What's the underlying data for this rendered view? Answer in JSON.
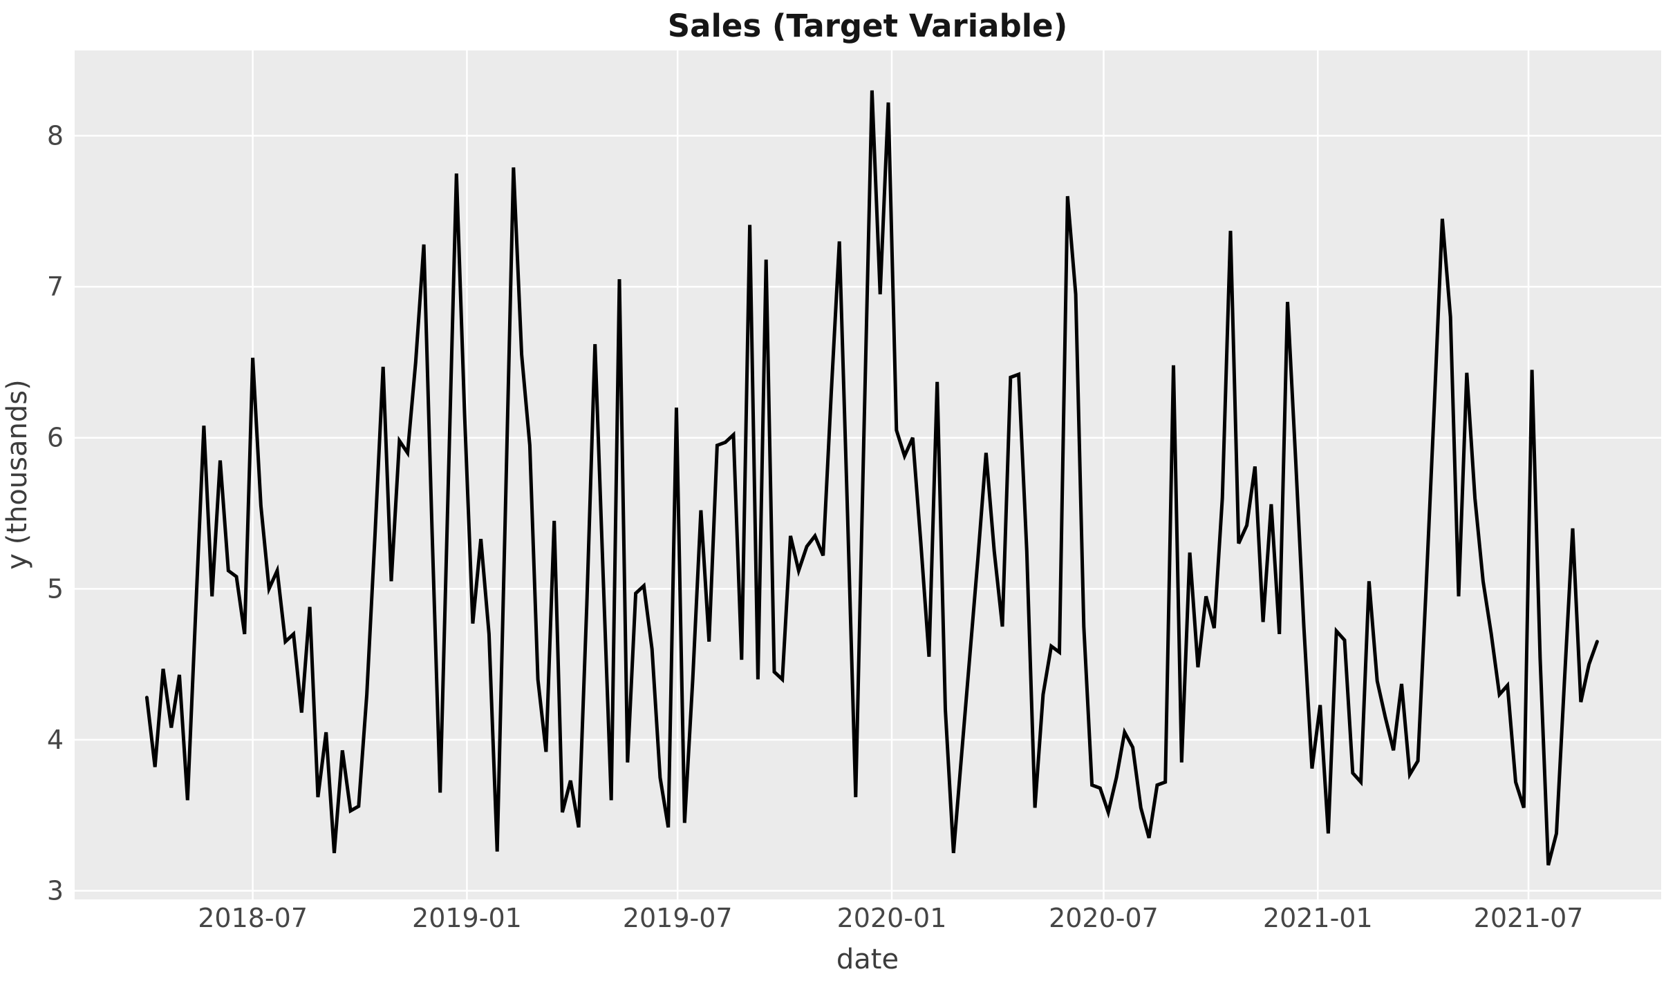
{
  "chart_data": {
    "type": "line",
    "title": "Sales (Target Variable)",
    "xlabel": "date",
    "ylabel": "y (thousands)",
    "legend": null,
    "grid": true,
    "plot_bg_color": "#EBEBEB",
    "grid_color": "#FFFFFF",
    "line_color": "#000000",
    "ylim": [
      2.943,
      8.565
    ],
    "y_ticks": [
      3,
      4,
      5,
      6,
      7,
      8
    ],
    "y_tick_labels": [
      "3",
      "4",
      "5",
      "6",
      "7",
      "8"
    ],
    "x_axis_start": "2018-01-29",
    "x_axis_end": "2021-10-23",
    "x_ticks": [
      {
        "label": "2018-07",
        "date": "2018-07-01"
      },
      {
        "label": "2019-01",
        "date": "2019-01-01"
      },
      {
        "label": "2019-07",
        "date": "2019-07-01"
      },
      {
        "label": "2020-01",
        "date": "2020-01-01"
      },
      {
        "label": "2020-07",
        "date": "2020-07-01"
      },
      {
        "label": "2021-01",
        "date": "2021-01-01"
      },
      {
        "label": "2021-07",
        "date": "2021-07-01"
      }
    ],
    "series_name": "y (thousands)",
    "series_start_date": "2018-04-01",
    "frequency_days": 7,
    "values": [
      4.28,
      3.82,
      4.47,
      4.08,
      4.43,
      3.6,
      4.85,
      6.08,
      4.95,
      5.85,
      5.12,
      5.08,
      4.7,
      6.53,
      5.55,
      5.0,
      5.12,
      4.65,
      4.7,
      4.18,
      4.88,
      3.62,
      4.05,
      3.25,
      3.93,
      3.53,
      3.56,
      4.3,
      5.35,
      6.47,
      5.05,
      5.98,
      5.9,
      6.5,
      7.28,
      5.4,
      3.65,
      5.7,
      7.75,
      6.15,
      4.77,
      5.33,
      4.7,
      3.26,
      5.5,
      7.79,
      6.55,
      5.95,
      4.4,
      3.92,
      5.45,
      3.52,
      3.73,
      3.42,
      4.9,
      6.62,
      5.1,
      3.6,
      7.05,
      3.85,
      4.97,
      5.02,
      4.6,
      3.75,
      3.42,
      6.2,
      3.45,
      4.4,
      5.52,
      4.65,
      5.95,
      5.97,
      6.02,
      4.53,
      7.41,
      4.4,
      7.18,
      4.45,
      4.4,
      5.35,
      5.12,
      5.28,
      5.35,
      5.22,
      6.3,
      7.3,
      5.5,
      3.62,
      6.0,
      8.3,
      6.95,
      8.22,
      6.05,
      5.88,
      6.0,
      5.3,
      4.55,
      6.37,
      4.2,
      3.25,
      3.9,
      4.55,
      5.2,
      5.9,
      5.25,
      4.75,
      6.4,
      6.42,
      5.25,
      3.55,
      4.3,
      4.62,
      4.58,
      7.6,
      6.95,
      4.75,
      3.7,
      3.68,
      3.52,
      3.75,
      4.05,
      3.95,
      3.55,
      3.35,
      3.7,
      3.72,
      6.48,
      3.85,
      5.24,
      4.48,
      4.95,
      4.74,
      5.6,
      7.37,
      5.3,
      5.42,
      5.81,
      4.78,
      5.56,
      4.7,
      6.9,
      5.85,
      4.75,
      3.81,
      4.23,
      3.38,
      4.72,
      4.66,
      3.78,
      3.72,
      5.05,
      4.39,
      4.15,
      3.93,
      4.37,
      3.77,
      3.86,
      5.0,
      6.2,
      7.45,
      6.8,
      4.95,
      6.43,
      5.6,
      5.05,
      4.7,
      4.3,
      4.36,
      3.72,
      3.55,
      6.45,
      4.54,
      3.17,
      3.38,
      4.4,
      5.4,
      4.25,
      4.5,
      4.65
    ]
  }
}
